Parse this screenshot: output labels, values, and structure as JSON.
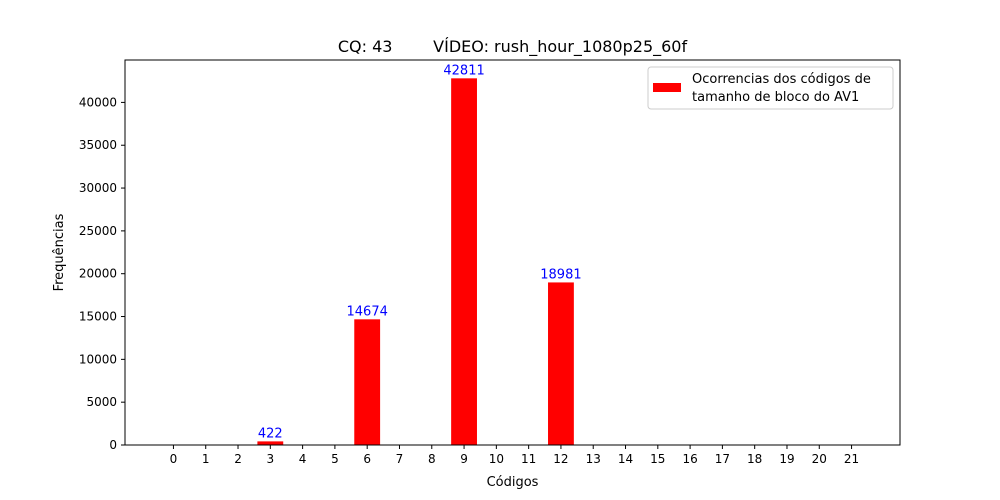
{
  "chart_data": {
    "type": "bar",
    "title": "CQ: 43        VÍDEO: rush_hour_1080p25_60f",
    "xlabel": "Códigos",
    "ylabel": "Frequências",
    "categories": [
      "0",
      "1",
      "2",
      "3",
      "4",
      "5",
      "6",
      "7",
      "8",
      "9",
      "10",
      "11",
      "12",
      "13",
      "14",
      "15",
      "16",
      "17",
      "18",
      "19",
      "20",
      "21"
    ],
    "series": [
      {
        "name": "Ocorrencias dos códigos de tamanho de bloco do AV1",
        "legend_lines": [
          "Ocorrencias dos códigos de",
          "tamanho de bloco do AV1"
        ],
        "color": "#ff0000",
        "values": [
          0,
          0,
          0,
          422,
          0,
          0,
          14674,
          0,
          0,
          42811,
          0,
          0,
          18981,
          0,
          0,
          0,
          0,
          0,
          0,
          0,
          0,
          0
        ]
      }
    ],
    "data_labels": [
      {
        "category": "3",
        "text": "422"
      },
      {
        "category": "6",
        "text": "14674"
      },
      {
        "category": "9",
        "text": "42811"
      },
      {
        "category": "12",
        "text": "18981"
      }
    ],
    "data_label_color": "#0000ff",
    "yticks": [
      0,
      5000,
      10000,
      15000,
      20000,
      25000,
      30000,
      35000,
      40000
    ],
    "ylim": [
      0,
      44951.55
    ],
    "xlim": [
      -1.5,
      22.5
    ],
    "grid": false,
    "legend_position": "top-right"
  }
}
